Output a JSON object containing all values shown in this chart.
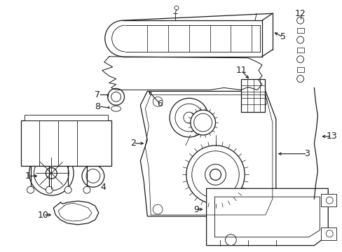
{
  "background_color": "#ffffff",
  "line_color": "#1a1a1a",
  "line_width": 0.9,
  "fig_width": 4.89,
  "fig_height": 3.6,
  "dpi": 100
}
